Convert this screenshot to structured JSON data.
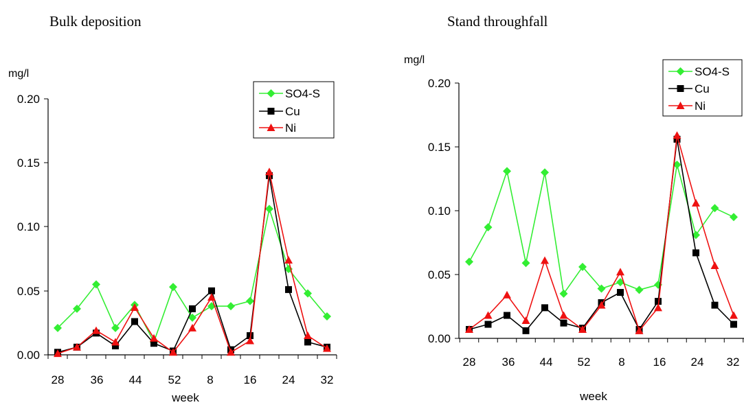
{
  "chart_data": [
    {
      "type": "line",
      "title": "Bulk deposition",
      "ylabel": "mg/l",
      "xlabel": "week",
      "ylim": [
        0,
        0.2
      ],
      "y_ticks": [
        "0.00",
        "0.05",
        "0.10",
        "0.15",
        "0.20"
      ],
      "x_tick_labels": [
        "28",
        "36",
        "44",
        "52",
        "8",
        "16",
        "24",
        "32"
      ],
      "x_weeks": [
        28,
        32,
        36,
        40,
        44,
        48,
        52,
        4,
        8,
        12,
        16,
        20,
        24,
        28,
        32
      ],
      "legend_position": "top-right",
      "series": [
        {
          "name": "SO4-S",
          "color": "#33ee33",
          "marker": "diamond",
          "values": [
            0.021,
            0.036,
            0.055,
            0.021,
            0.039,
            0.01,
            0.053,
            0.029,
            0.038,
            0.038,
            0.042,
            0.114,
            0.067,
            0.048,
            0.03
          ]
        },
        {
          "name": "Cu",
          "color": "#000000",
          "marker": "square",
          "values": [
            0.002,
            0.006,
            0.017,
            0.007,
            0.026,
            0.009,
            0.003,
            0.036,
            0.05,
            0.004,
            0.015,
            0.14,
            0.051,
            0.01,
            0.006
          ]
        },
        {
          "name": "Ni",
          "color": "#ee1111",
          "marker": "triangle",
          "values": [
            0.001,
            0.006,
            0.019,
            0.01,
            0.037,
            0.013,
            0.002,
            0.021,
            0.045,
            0.002,
            0.011,
            0.143,
            0.074,
            0.015,
            0.005
          ]
        }
      ]
    },
    {
      "type": "line",
      "title": "Stand throughfall",
      "ylabel": "mg/l",
      "xlabel": "week",
      "ylim": [
        0,
        0.2
      ],
      "y_ticks": [
        "0.00",
        "0.05",
        "0.10",
        "0.15",
        "0.20"
      ],
      "x_tick_labels": [
        "28",
        "36",
        "44",
        "52",
        "8",
        "16",
        "24",
        "32"
      ],
      "x_weeks": [
        28,
        32,
        36,
        40,
        44,
        48,
        52,
        4,
        8,
        12,
        16,
        20,
        24,
        28,
        32
      ],
      "legend_position": "top-right",
      "series": [
        {
          "name": "SO4-S",
          "color": "#33ee33",
          "marker": "diamond",
          "values": [
            0.06,
            0.087,
            0.131,
            0.059,
            0.13,
            0.035,
            0.056,
            0.039,
            0.044,
            0.038,
            0.042,
            0.136,
            0.081,
            0.102,
            0.095
          ]
        },
        {
          "name": "Cu",
          "color": "#000000",
          "marker": "square",
          "values": [
            0.007,
            0.011,
            0.018,
            0.006,
            0.024,
            0.012,
            0.008,
            0.028,
            0.036,
            0.007,
            0.029,
            0.156,
            0.067,
            0.026,
            0.011
          ]
        },
        {
          "name": "Ni",
          "color": "#ee1111",
          "marker": "triangle",
          "values": [
            0.007,
            0.018,
            0.034,
            0.014,
            0.061,
            0.018,
            0.007,
            0.026,
            0.052,
            0.006,
            0.024,
            0.159,
            0.106,
            0.057,
            0.018
          ]
        }
      ]
    }
  ]
}
